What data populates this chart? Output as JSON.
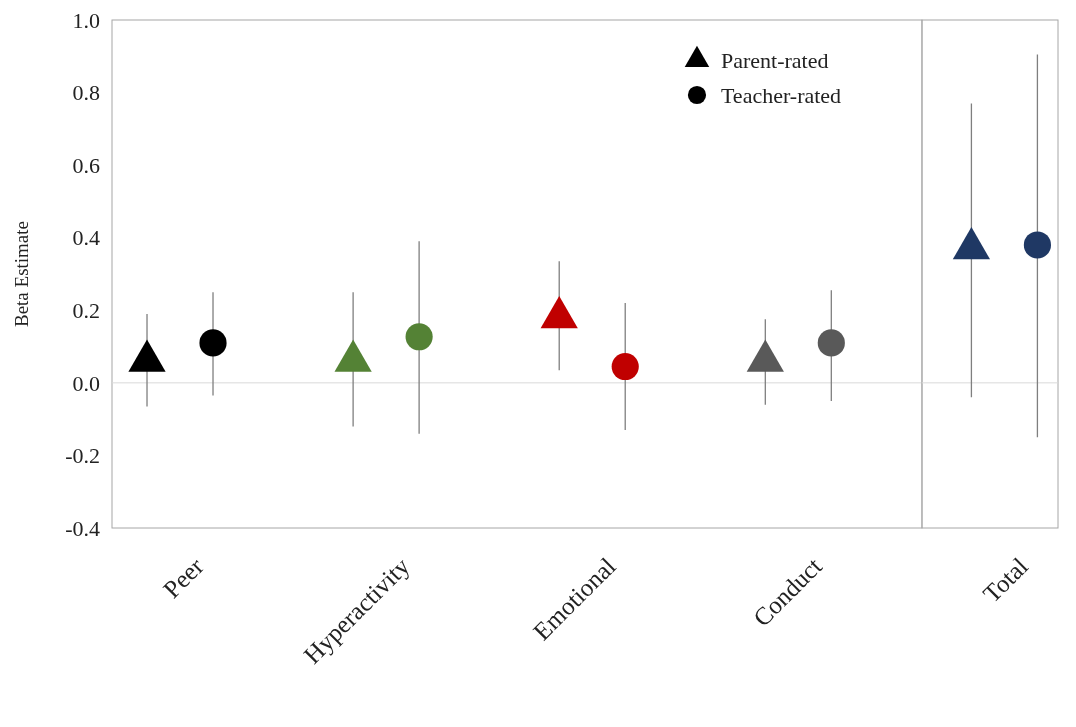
{
  "chart_data": [
    {
      "type": "scatter",
      "ylabel": "Beta Estimate",
      "categories": [
        "Peer",
        "Hyperactivity",
        "Emotional",
        "Conduct"
      ],
      "series": [
        {
          "name": "Parent-rated",
          "color": "#000000",
          "marker": "triangle",
          "colors": [
            "#000000",
            "#548235",
            "#c00000",
            "#595959"
          ],
          "values": [
            0.06,
            0.06,
            0.18,
            0.06
          ],
          "errors": [
            [
              -0.065,
              0.19
            ],
            [
              -0.12,
              0.25
            ],
            [
              0.035,
              0.335
            ],
            [
              -0.06,
              0.175
            ]
          ]
        },
        {
          "name": "Teacher-rated",
          "color": "#000000",
          "marker": "circle",
          "colors": [
            "#000000",
            "#548235",
            "#c00000",
            "#595959"
          ],
          "values": [
            0.11,
            0.127,
            0.045,
            0.11
          ],
          "errors": [
            [
              -0.035,
              0.25
            ],
            [
              -0.14,
              0.39
            ],
            [
              -0.13,
              0.22
            ],
            [
              -0.05,
              0.255
            ]
          ]
        }
      ],
      "ylim": [
        -0.4,
        1.0
      ],
      "yticks": [
        {
          "value": -0.4,
          "label": "-0.4"
        },
        {
          "value": -0.2,
          "label": "-0.2"
        },
        {
          "value": 0,
          "label": "0.0"
        },
        {
          "value": 0.2,
          "label": "0.2"
        },
        {
          "value": 0.4,
          "label": "0.4"
        },
        {
          "value": 0.6,
          "label": "0.6"
        },
        {
          "value": 0.8,
          "label": "0.8"
        },
        {
          "value": 1,
          "label": "1.0"
        }
      ],
      "ref_lines": [
        {
          "axis": "y",
          "value": 0,
          "color": "#d9d9d9"
        }
      ],
      "legend": "top right",
      "grid": false
    },
    {
      "type": "scatter",
      "categories": [
        "Total"
      ],
      "series": [
        {
          "color": "#1f3864",
          "marker": "triangle",
          "values": [
            0.37
          ],
          "errors": [
            [
              -0.04,
              0.77
            ]
          ]
        },
        {
          "color": "#1f3864",
          "marker": "circle",
          "values": [
            0.38
          ],
          "errors": [
            [
              -0.15,
              0.905
            ]
          ]
        }
      ],
      "ylim": [
        -0.4,
        1.0
      ],
      "ref_lines": [
        {
          "axis": "y",
          "value": 0,
          "color": "#d9d9d9"
        }
      ],
      "tick_labels": "x",
      "grid": false
    }
  ]
}
